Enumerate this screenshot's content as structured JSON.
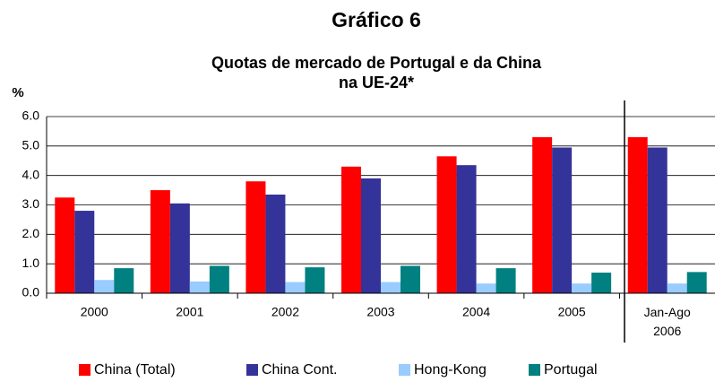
{
  "chart_data": {
    "type": "bar",
    "title": "Gráfico 6",
    "subtitle": [
      "Quotas de mercado de Portugal e da China",
      "na UE-24*"
    ],
    "y_label": "%",
    "categories": [
      "2000",
      "2001",
      "2002",
      "2003",
      "2004",
      "2005",
      "Jan-Ago 2006"
    ],
    "series": [
      {
        "name": "China (Total)",
        "color": "#ff0000",
        "values": [
          3.25,
          3.5,
          3.8,
          4.3,
          4.65,
          5.3,
          5.3
        ]
      },
      {
        "name": "China Cont.",
        "color": "#333399",
        "values": [
          2.8,
          3.05,
          3.35,
          3.9,
          4.35,
          4.95,
          4.95
        ]
      },
      {
        "name": "Hong-Kong",
        "color": "#99ccff",
        "values": [
          0.45,
          0.4,
          0.38,
          0.38,
          0.33,
          0.33,
          0.33
        ]
      },
      {
        "name": "Portugal",
        "color": "#008080",
        "values": [
          0.85,
          0.93,
          0.88,
          0.93,
          0.85,
          0.7,
          0.72
        ]
      }
    ],
    "ylim": [
      0,
      6
    ],
    "yticks": [
      {
        "value": 0,
        "label": "0.0"
      },
      {
        "value": 1,
        "label": "1.0"
      },
      {
        "value": 2,
        "label": "2.0"
      },
      {
        "value": 3,
        "label": "3.0"
      },
      {
        "value": 4,
        "label": "4.0"
      },
      {
        "value": 5,
        "label": "5.0"
      },
      {
        "value": 6,
        "label": "6.0"
      }
    ],
    "grid": true,
    "legend": "bottom"
  }
}
